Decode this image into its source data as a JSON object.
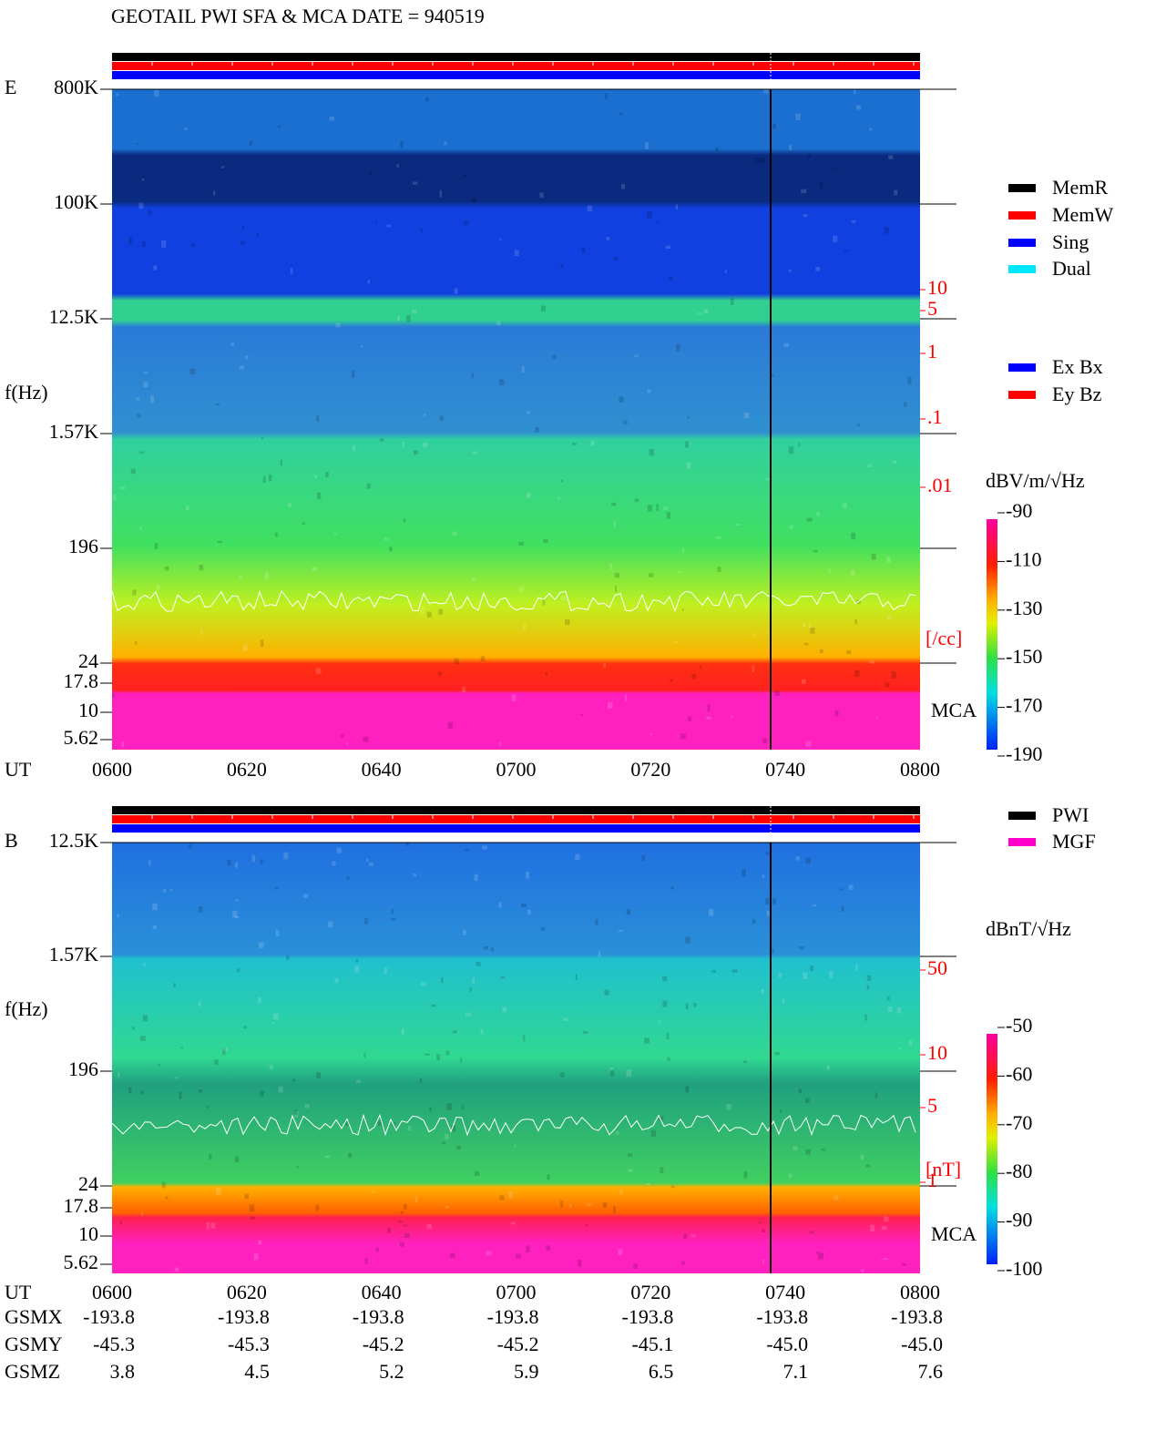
{
  "title": "GEOTAIL   PWI SFA & MCA   DATE = 940519",
  "panels": [
    {
      "component": "E",
      "y_label": "f(Hz)",
      "x_label": "UT",
      "x_ticks": [
        "0600",
        "0620",
        "0640",
        "0700",
        "0720",
        "0740",
        "0800"
      ],
      "y_ticks": [
        "800K",
        "100K",
        "12.5K",
        "1.57K",
        "196",
        "24",
        "17.8",
        "10",
        "5.62"
      ],
      "mca_label": "MCA",
      "right_ticks": [
        "10",
        "5",
        "1",
        ".1",
        ".01"
      ],
      "right_unit": "[/cc]",
      "colorbar": {
        "unit": "dBV/m/√Hz",
        "ticks": [
          -90,
          -110,
          -130,
          -150,
          -170,
          -190
        ]
      }
    },
    {
      "component": "B",
      "y_label": "f(Hz)",
      "x_label": "UT",
      "x_ticks": [
        "0600",
        "0620",
        "0640",
        "0700",
        "0720",
        "0740",
        "0800"
      ],
      "y_ticks": [
        "12.5K",
        "1.57K",
        "196",
        "24",
        "17.8",
        "10",
        "5.62"
      ],
      "mca_label": "MCA",
      "right_ticks": [
        "50",
        "10",
        "5",
        "1"
      ],
      "right_unit": "[nT]",
      "colorbar": {
        "unit": "dBnT/√Hz",
        "ticks": [
          -50,
          -60,
          -70,
          -80,
          -90,
          -100
        ]
      }
    }
  ],
  "legend_modes": [
    {
      "name": "MemR",
      "color": "#000000"
    },
    {
      "name": "MemW",
      "color": "#ff0000"
    },
    {
      "name": "Sing",
      "color": "#0000ff"
    },
    {
      "name": "Dual",
      "color": "#00e8ff"
    }
  ],
  "legend_components": [
    {
      "name": "Ex Bx",
      "color": "#0000ff"
    },
    {
      "name": "Ey Bz",
      "color": "#ff0000"
    }
  ],
  "legend_sources": [
    {
      "name": "PWI",
      "color": "#000000"
    },
    {
      "name": "MGF",
      "color": "#ff00cc"
    }
  ],
  "position": [
    {
      "label": "GSMX",
      "values": [
        "-193.8",
        "-193.8",
        "-193.8",
        "-193.8",
        "-193.8",
        "-193.8",
        "-193.8"
      ]
    },
    {
      "label": "GSMY",
      "values": [
        "-45.3",
        "-45.3",
        "-45.2",
        "-45.2",
        "-45.1",
        "-45.0",
        "-45.0"
      ]
    },
    {
      "label": "GSMZ",
      "values": [
        "3.8",
        "4.5",
        "5.2",
        "5.9",
        "6.5",
        "7.1",
        "7.6"
      ]
    }
  ]
}
